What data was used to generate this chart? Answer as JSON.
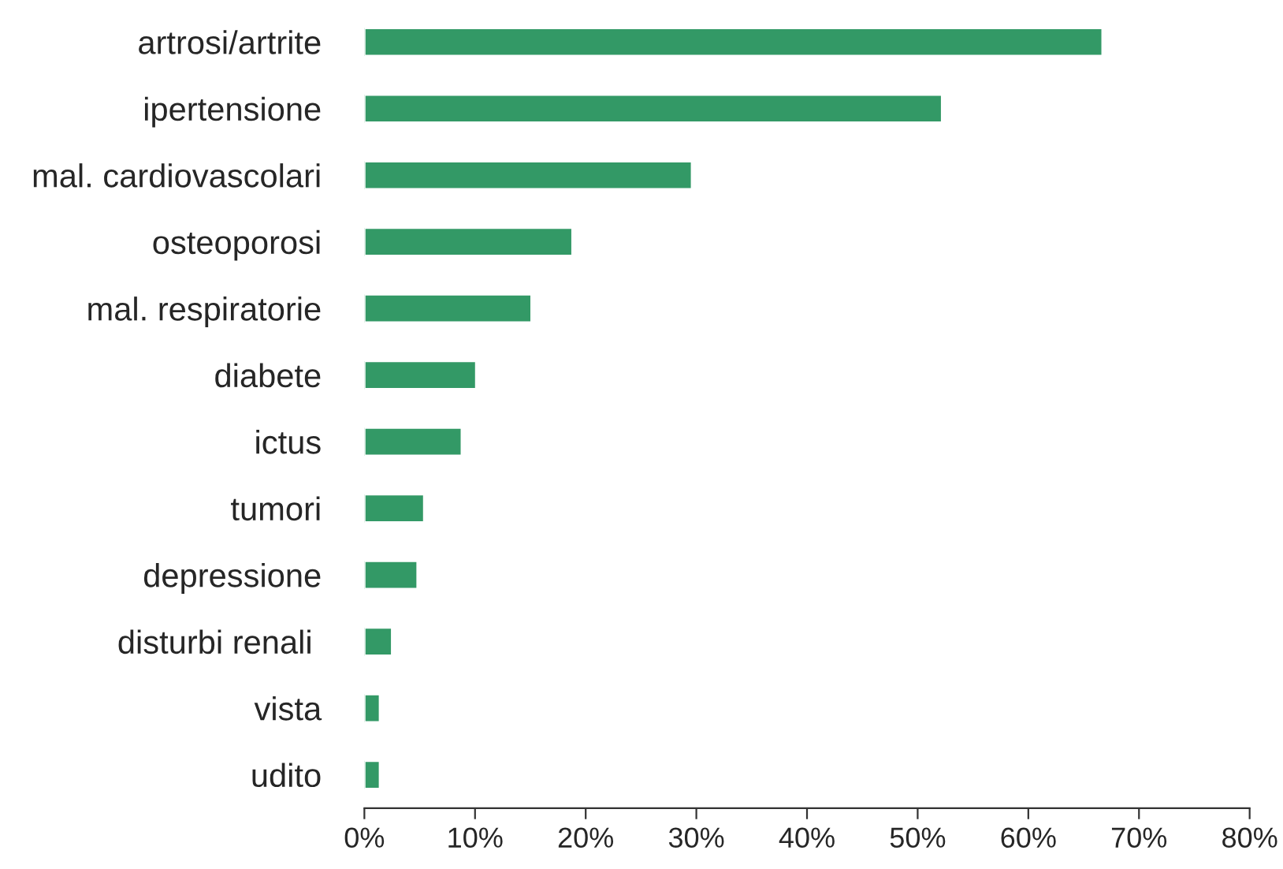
{
  "chart_data": {
    "type": "bar",
    "orientation": "horizontal",
    "categories": [
      "artrosi/artrite",
      "ipertensione",
      "mal. cardiovascolari",
      "osteoporosi",
      "mal. respiratorie",
      "diabete",
      "ictus",
      "tumori",
      "depressione",
      "disturbi renali ",
      "vista",
      "udito"
    ],
    "values": [
      66.7,
      52.2,
      29.6,
      18.8,
      15.1,
      10.1,
      8.8,
      5.4,
      4.8,
      2.5,
      1.4,
      1.4
    ],
    "color": "#339966",
    "xlim": [
      0,
      80
    ],
    "xticks": [
      {
        "value": 0,
        "label": "0%"
      },
      {
        "value": 10,
        "label": "10%"
      },
      {
        "value": 20,
        "label": "20%"
      },
      {
        "value": 30,
        "label": "30%"
      },
      {
        "value": 40,
        "label": "40%"
      },
      {
        "value": 50,
        "label": "50%"
      },
      {
        "value": 60,
        "label": "60%"
      },
      {
        "value": 70,
        "label": "70%"
      },
      {
        "value": 80,
        "label": "80%"
      }
    ],
    "grid": false,
    "legend": false
  }
}
